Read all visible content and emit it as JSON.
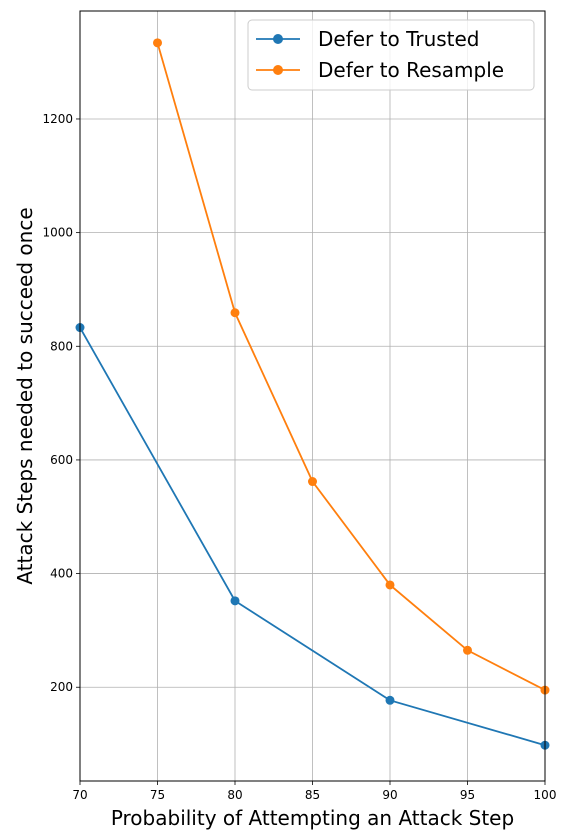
{
  "chart_data": {
    "type": "line",
    "title": "",
    "xlabel": "Probability of Attempting an Attack Step",
    "ylabel": "Attack Steps needed to succeed once",
    "xlim": [
      70,
      100
    ],
    "ylim": [
      35,
      1390
    ],
    "xticks": [
      70,
      75,
      80,
      85,
      90,
      95,
      100
    ],
    "yticks": [
      200,
      400,
      600,
      800,
      1000,
      1200
    ],
    "grid": true,
    "legend_position": "top-right",
    "series": [
      {
        "name": "Defer to Trusted",
        "color": "#1f77b4",
        "x": [
          70,
          80,
          90,
          100
        ],
        "y": [
          833,
          352,
          177,
          98
        ]
      },
      {
        "name": "Defer to Resample",
        "color": "#ff7f0e",
        "x": [
          75,
          80,
          85,
          90,
          95,
          100
        ],
        "y": [
          1334,
          859,
          562,
          380,
          265,
          195
        ]
      }
    ]
  }
}
